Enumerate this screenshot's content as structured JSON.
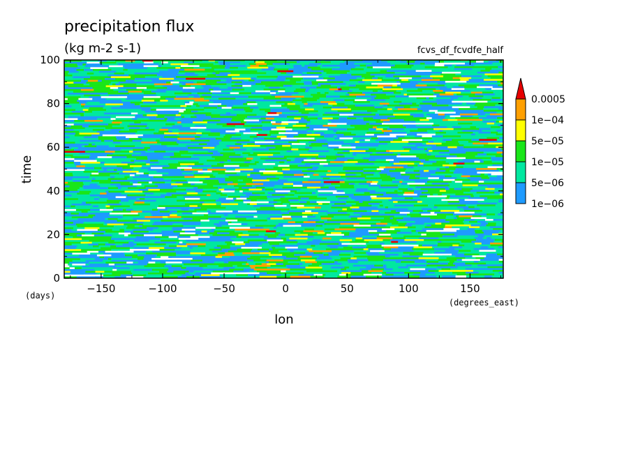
{
  "chart_data": {
    "type": "heatmap",
    "title": "precipitation flux",
    "units": "(kg m-2 s-1)",
    "run_label": "fcvs_df_fcvdfe_half",
    "xlabel": "lon",
    "ylabel": "time",
    "x_units": "(degrees_east)",
    "y_units": "(days)",
    "xlim": [
      -180,
      177
    ],
    "ylim": [
      0,
      100
    ],
    "x_ticks": [
      -150,
      -100,
      -50,
      0,
      50,
      100,
      150
    ],
    "y_ticks": [
      0,
      20,
      40,
      60,
      80,
      100
    ],
    "x_tick_labels": [
      "−150",
      "−100",
      "−50",
      "0",
      "50",
      "100",
      "150"
    ],
    "y_tick_labels": [
      "0",
      "20",
      "40",
      "60",
      "80",
      "100"
    ],
    "colorbar": {
      "levels": [
        1e-06,
        5e-06,
        1e-05,
        5e-05,
        0.0001,
        0.0005
      ],
      "level_labels": [
        "1e−06",
        "5e−06",
        "1e−05",
        "5e−05",
        "1e−04",
        "0.0005"
      ],
      "colors": [
        "#ffffff",
        "#1e9bff",
        "#00e8a0",
        "#19e619",
        "#ffff00",
        "#ffa000",
        "#e60000"
      ],
      "extend": "max"
    },
    "field_description": "Longitude–time Hovmöller of precipitation flux; noisy streaky pattern of values mostly between 1e-06 and 1e-04 with scattered peaks above 0.0005."
  }
}
